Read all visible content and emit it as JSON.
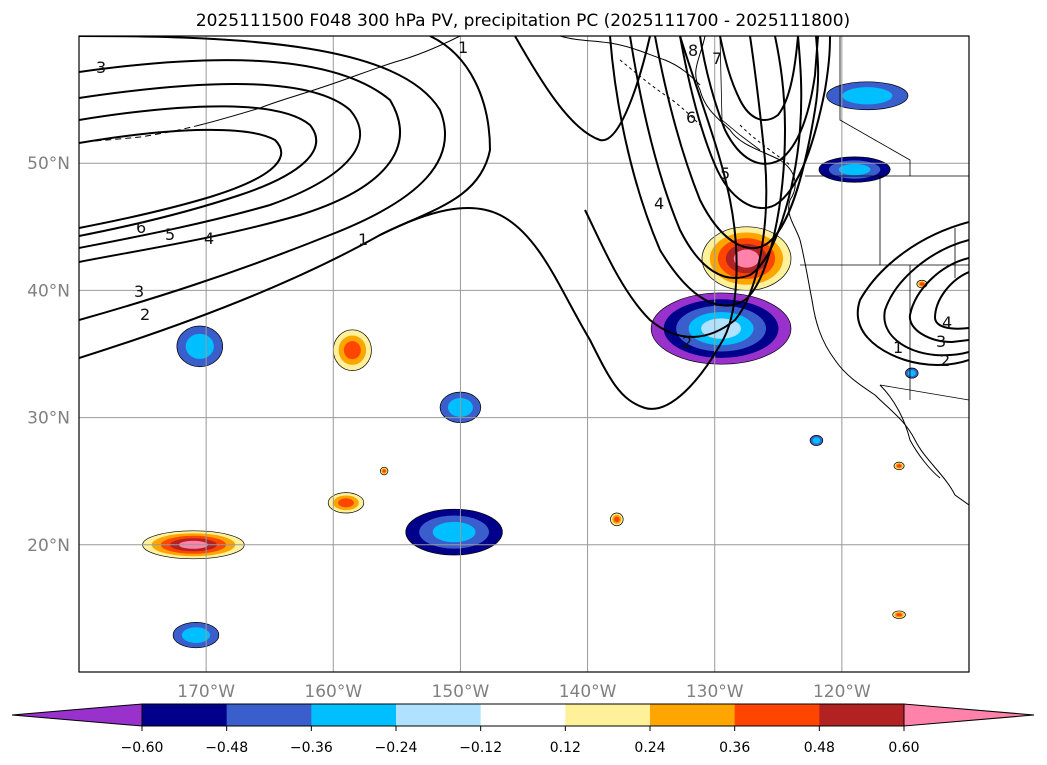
{
  "title": "2025111500 F048 300 hPa PV, precipitation PC (2025111700 - 2025111800)",
  "lat_ticks": [
    {
      "lat": 50,
      "label": "50°N"
    },
    {
      "lat": 40,
      "label": "40°N"
    },
    {
      "lat": 30,
      "label": "30°N"
    },
    {
      "lat": 20,
      "label": "20°N"
    }
  ],
  "lon_ticks": [
    {
      "lon": -170,
      "label": "170°W"
    },
    {
      "lon": -160,
      "label": "160°W"
    },
    {
      "lon": -150,
      "label": "150°W"
    },
    {
      "lon": -140,
      "label": "140°W"
    },
    {
      "lon": -130,
      "label": "130°W"
    },
    {
      "lon": -120,
      "label": "120°W"
    }
  ],
  "extent": {
    "lon_min": -180,
    "lon_max": -110,
    "lat_min": 10,
    "lat_max": 60
  },
  "colorbar": {
    "levels": [
      "−0.60",
      "−0.48",
      "−0.36",
      "−0.24",
      "−0.12",
      "0.12",
      "0.24",
      "0.36",
      "0.48",
      "0.60"
    ],
    "colors": [
      "#9932cc",
      "#00008b",
      "#3a5fcd",
      "#00bfff",
      "#b0e2ff",
      "#ffffff",
      "#fff09a",
      "#ffa500",
      "#ff4500",
      "#b22222",
      "#ff82ab"
    ],
    "extend": "both"
  },
  "pv_contour_labels": [
    "3",
    "1",
    "6",
    "5",
    "4",
    "3",
    "2",
    "1",
    "8",
    "7",
    "6",
    "4",
    "5",
    "4",
    "3",
    "2",
    "1",
    "2"
  ],
  "precip_blobs": [
    {
      "lon": -170.5,
      "lat": 35.6,
      "rx": 1.8,
      "ry": 1.6,
      "levels": [
        2,
        3
      ]
    },
    {
      "lon": -158.5,
      "lat": 35.3,
      "rx": 1.5,
      "ry": 1.6,
      "levels": [
        6,
        7,
        8
      ]
    },
    {
      "lon": -150.0,
      "lat": 30.8,
      "rx": 1.6,
      "ry": 1.2,
      "levels": [
        2,
        3
      ]
    },
    {
      "lon": -150.5,
      "lat": 21.0,
      "rx": 3.8,
      "ry": 1.8,
      "levels": [
        1,
        2,
        3
      ]
    },
    {
      "lon": -159.0,
      "lat": 23.3,
      "rx": 1.4,
      "ry": 0.8,
      "levels": [
        6,
        7,
        8
      ]
    },
    {
      "lon": -171.0,
      "lat": 20.0,
      "rx": 4.0,
      "ry": 1.1,
      "levels": [
        6,
        7,
        8,
        9,
        10
      ]
    },
    {
      "lon": -170.8,
      "lat": 12.9,
      "rx": 1.8,
      "ry": 1.0,
      "levels": [
        2,
        3
      ]
    },
    {
      "lon": -129.5,
      "lat": 37.0,
      "rx": 5.5,
      "ry": 2.8,
      "levels": [
        0,
        1,
        2,
        3,
        4
      ]
    },
    {
      "lon": -127.5,
      "lat": 42.5,
      "rx": 3.5,
      "ry": 2.5,
      "levels": [
        6,
        7,
        8,
        9,
        10
      ]
    },
    {
      "lon": -118.0,
      "lat": 55.3,
      "rx": 3.2,
      "ry": 1.1,
      "levels": [
        2,
        3
      ]
    },
    {
      "lon": -119.0,
      "lat": 49.5,
      "rx": 2.8,
      "ry": 1.0,
      "levels": [
        1,
        2,
        3
      ]
    },
    {
      "lon": -137.7,
      "lat": 22.0,
      "rx": 0.5,
      "ry": 0.5,
      "levels": [
        6,
        7,
        8
      ]
    },
    {
      "lon": -115.5,
      "lat": 26.2,
      "rx": 0.4,
      "ry": 0.3,
      "levels": [
        6,
        7,
        8
      ]
    },
    {
      "lon": -122.0,
      "lat": 28.2,
      "rx": 0.5,
      "ry": 0.4,
      "levels": [
        2,
        3
      ]
    },
    {
      "lon": -114.5,
      "lat": 33.5,
      "rx": 0.5,
      "ry": 0.4,
      "levels": [
        2,
        3
      ]
    },
    {
      "lon": -156.0,
      "lat": 25.8,
      "rx": 0.3,
      "ry": 0.3,
      "levels": [
        6,
        7,
        8
      ]
    },
    {
      "lon": -115.5,
      "lat": 14.5,
      "rx": 0.5,
      "ry": 0.3,
      "levels": [
        6,
        7,
        8
      ]
    },
    {
      "lon": -113.7,
      "lat": 40.5,
      "rx": 0.4,
      "ry": 0.3,
      "levels": [
        6,
        7,
        8
      ]
    }
  ]
}
